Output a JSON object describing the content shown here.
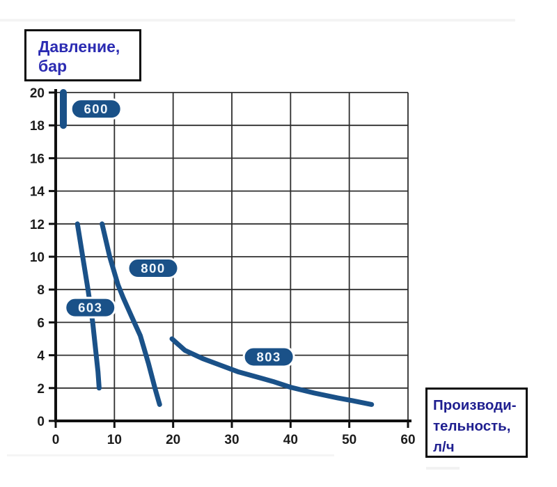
{
  "ylabel_box": {
    "lines": [
      "Давление,",
      "бар"
    ]
  },
  "xlabel_box": {
    "lines": [
      "Производи-",
      "тельность,",
      "л/ч"
    ]
  },
  "colors": {
    "curve": "#1a5188",
    "pill_fill": "#1a5188",
    "pill_text": "#f0f6fc",
    "grid": "#2e2e2e",
    "axis": "#101010",
    "tick_text": "#1c1c1c",
    "ylabel_text": "#2b2bb2",
    "xlabel_text": "#1f1f90"
  },
  "chart_data": {
    "type": "line",
    "title": "",
    "xlabel": "Производительность, л/ч",
    "ylabel": "Давление, бар",
    "xlim": [
      0,
      60
    ],
    "ylim": [
      0,
      20
    ],
    "x_ticks": [
      0,
      10,
      20,
      30,
      40,
      50,
      60
    ],
    "y_ticks": [
      0,
      2,
      4,
      6,
      8,
      10,
      12,
      14,
      16,
      18,
      20
    ],
    "grid": true,
    "legend_position": "inline-pills",
    "series": [
      {
        "name": "600",
        "points": [
          [
            1.3,
            18
          ],
          [
            1.3,
            20
          ]
        ],
        "label_pos": [
          6.9,
          19
        ],
        "stroke_width": 10
      },
      {
        "name": "603",
        "points": [
          [
            3.7,
            12
          ],
          [
            4.6,
            10
          ],
          [
            5.5,
            8
          ],
          [
            6.3,
            6
          ],
          [
            6.9,
            4
          ],
          [
            7.2,
            3
          ],
          [
            7.4,
            2
          ]
        ],
        "label_pos": [
          5.9,
          6.9
        ],
        "stroke_width": 7
      },
      {
        "name": "800",
        "points": [
          [
            7.9,
            12
          ],
          [
            9.2,
            10
          ],
          [
            10.6,
            8.3
          ],
          [
            11.5,
            7.5
          ],
          [
            13,
            6.3
          ],
          [
            14.4,
            5.2
          ],
          [
            15.8,
            3.5
          ],
          [
            16.9,
            2
          ],
          [
            17.7,
            1
          ]
        ],
        "label_pos": [
          16.6,
          9.3
        ],
        "stroke_width": 7
      },
      {
        "name": "803",
        "points": [
          [
            19.8,
            5
          ],
          [
            22,
            4.3
          ],
          [
            25,
            3.8
          ],
          [
            28,
            3.4
          ],
          [
            31,
            3.0
          ],
          [
            34,
            2.7
          ],
          [
            37,
            2.4
          ],
          [
            40,
            2.05
          ],
          [
            44,
            1.7
          ],
          [
            48,
            1.4
          ],
          [
            51,
            1.2
          ],
          [
            53.8,
            1.0
          ]
        ],
        "label_pos": [
          36.3,
          3.9
        ],
        "stroke_width": 7
      }
    ]
  }
}
